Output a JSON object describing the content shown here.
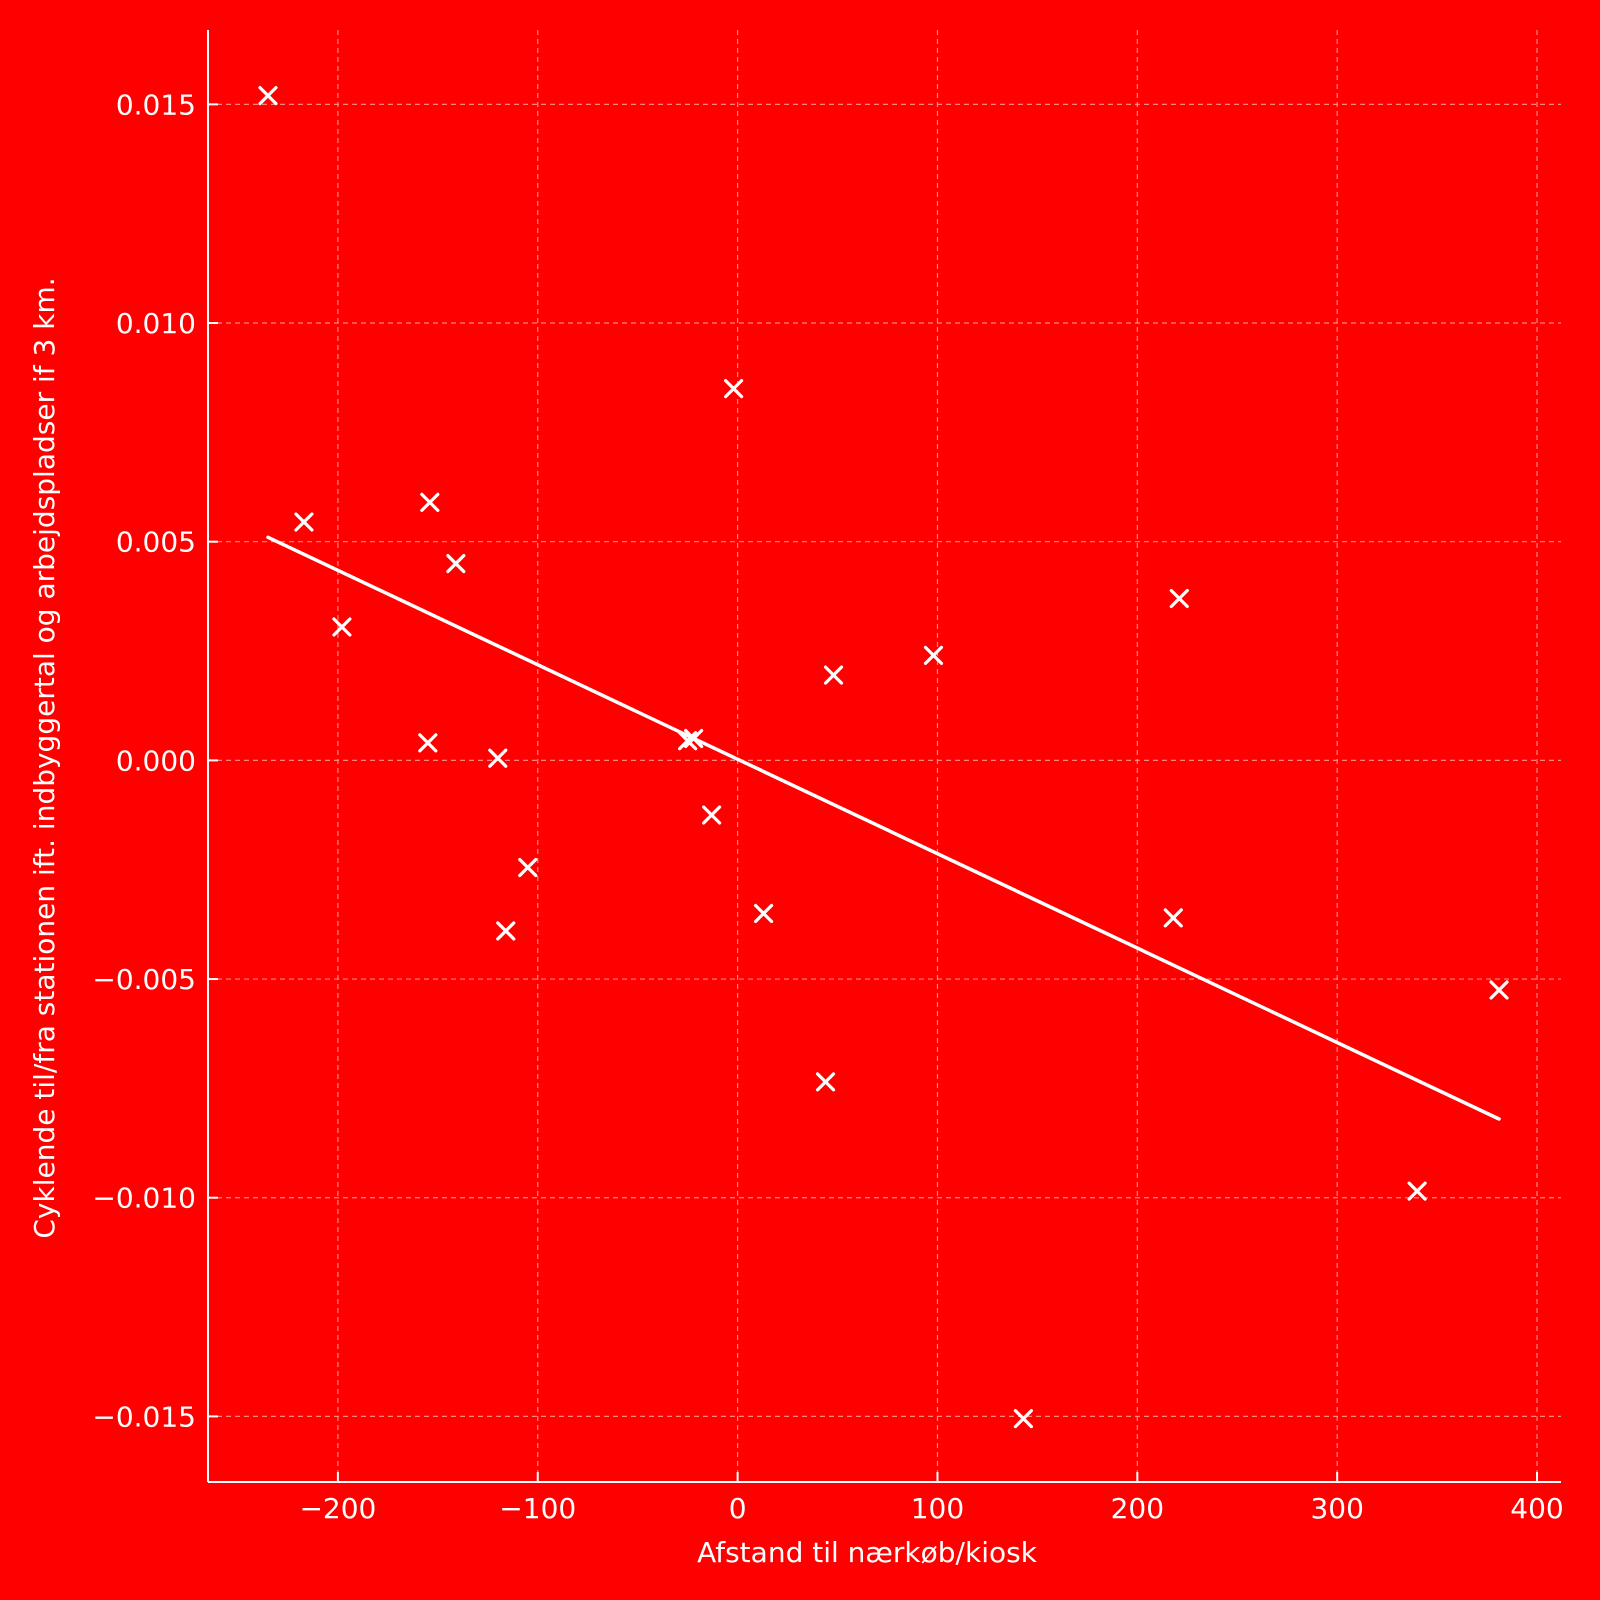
{
  "colors": {
    "background": "#ff0000",
    "foreground": "#ffffff",
    "grid": "#ff9a9a"
  },
  "chart_data": {
    "type": "scatter",
    "xlabel": "Afstand til nærkøb/kiosk",
    "ylabel": "Cyklende til/fra stationen ift. indbyggertal og arbejdspladser if 3 km.",
    "xlim": [
      -265,
      412
    ],
    "ylim": [
      -0.0165,
      0.0167
    ],
    "grid": true,
    "legend": "none",
    "x_ticks": [
      -200,
      -100,
      0,
      100,
      200,
      300,
      400
    ],
    "x_tick_labels": [
      "−200",
      "−100",
      "0",
      "100",
      "200",
      "300",
      "400"
    ],
    "y_ticks": [
      -0.015,
      -0.01,
      -0.005,
      0.0,
      0.005,
      0.01,
      0.015
    ],
    "y_tick_labels": [
      "−0.015",
      "−0.010",
      "−0.005",
      "0.000",
      "0.005",
      "0.010",
      "0.015"
    ],
    "series": [
      {
        "marker": "x",
        "points": [
          [
            -235,
            0.0152
          ],
          [
            -217,
            0.00545
          ],
          [
            -198,
            0.00305
          ],
          [
            -154,
            0.0059
          ],
          [
            -155,
            0.0004
          ],
          [
            -141,
            0.0045
          ],
          [
            -120,
            5e-05
          ],
          [
            -116,
            -0.0039
          ],
          [
            -105,
            -0.00245
          ],
          [
            -25,
            0.00045
          ],
          [
            -22,
            0.0005
          ],
          [
            -2,
            0.0085
          ],
          [
            -13,
            -0.00125
          ],
          [
            13,
            -0.0035
          ],
          [
            48,
            0.00195
          ],
          [
            44,
            -0.00735
          ],
          [
            98,
            0.0024
          ],
          [
            143,
            -0.01505
          ],
          [
            221,
            0.0037
          ],
          [
            218,
            -0.0036
          ],
          [
            340,
            -0.00985
          ],
          [
            381,
            -0.00525
          ]
        ]
      },
      {
        "marker": "line",
        "points": [
          [
            -235,
            0.0051
          ],
          [
            381,
            -0.0082
          ]
        ]
      }
    ]
  }
}
